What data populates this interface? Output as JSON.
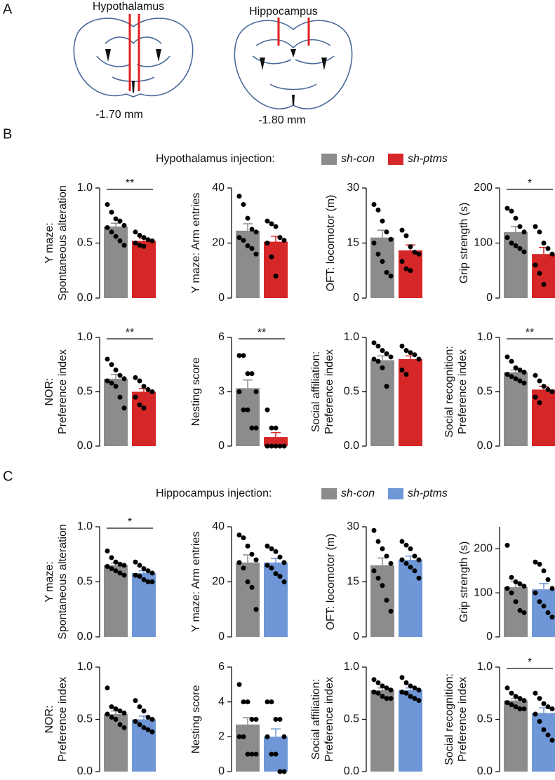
{
  "panel_labels": [
    "A",
    "B",
    "C"
  ],
  "brain_sections": [
    {
      "region": "Hypothalamus",
      "coordinate": "-1.70 mm"
    },
    {
      "region": "Hippocampus",
      "coordinate": "-1.80 mm"
    }
  ],
  "legends": [
    {
      "title": "Hypothalamus injection:",
      "entries": [
        {
          "name": "sh-con",
          "color": "#8c8c8c"
        },
        {
          "name": "sh-ptms",
          "color": "#d62728"
        }
      ]
    },
    {
      "title": "Hippocampus injection:",
      "entries": [
        {
          "name": "sh-con",
          "color": "#8c8c8c"
        },
        {
          "name": "sh-ptms",
          "color": "#6f96d6"
        }
      ]
    }
  ],
  "chart_data": [
    {
      "type": "bar",
      "ylabel": [
        "Y maze:",
        "Spontaneous alteration"
      ],
      "ylim": [
        0,
        1
      ],
      "yticks": [
        {
          "value": 0,
          "label": "0.0"
        },
        0.5,
        {
          "value": 1,
          "label": "1.0"
        }
      ],
      "significance": "**",
      "series": [
        {
          "color": "#8c8c8c",
          "values": [
            0.65
          ],
          "errors": [
            0.03
          ],
          "points": [
            0.85,
            0.78,
            0.72,
            0.7,
            0.66,
            0.64,
            0.6,
            0.56,
            0.52,
            0.48
          ]
        },
        {
          "color": "#d62728",
          "values": [
            0.52
          ],
          "errors": [
            0.02
          ],
          "points": [
            0.6,
            0.57,
            0.55,
            0.53,
            0.52,
            0.5,
            0.48,
            0.47
          ]
        }
      ]
    },
    {
      "type": "bar",
      "ylabel": [
        "Y maze: Arm entries"
      ],
      "ylim": [
        0,
        40
      ],
      "yticks": [
        0,
        20,
        40
      ],
      "series": [
        {
          "color": "#8c8c8c",
          "values": [
            24.5
          ],
          "errors": [
            2.5
          ],
          "points": [
            37,
            34,
            29,
            25,
            24,
            22,
            21,
            19,
            18,
            16
          ]
        },
        {
          "color": "#d62728",
          "values": [
            20.5
          ],
          "errors": [
            2
          ],
          "points": [
            28,
            27,
            26,
            22,
            21,
            20,
            15,
            8
          ]
        }
      ]
    },
    {
      "type": "bar",
      "ylabel": [
        "OFT: locomotor (m)"
      ],
      "ylim": [
        0,
        30
      ],
      "yticks": [
        0,
        15,
        30
      ],
      "series": [
        {
          "color": "#8c8c8c",
          "values": [
            16.5
          ],
          "errors": [
            2
          ],
          "points": [
            25.5,
            24,
            21,
            18,
            16,
            15,
            12,
            10,
            7,
            6
          ]
        },
        {
          "color": "#d62728",
          "values": [
            13
          ],
          "errors": [
            1.5
          ],
          "points": [
            18.5,
            17,
            14,
            12.5,
            12,
            10,
            8,
            7.5
          ]
        }
      ]
    },
    {
      "type": "bar",
      "ylabel": [
        "Grip strength (s)"
      ],
      "ylim": [
        0,
        200
      ],
      "yticks": [
        0,
        100,
        200
      ],
      "significance": "*",
      "series": [
        {
          "color": "#8c8c8c",
          "values": [
            120
          ],
          "errors": [
            10
          ],
          "points": [
            163,
            158,
            145,
            130,
            120,
            110,
            100,
            95,
            90,
            84
          ]
        },
        {
          "color": "#d62728",
          "values": [
            80
          ],
          "errors": [
            12
          ],
          "points": [
            130,
            120,
            100,
            90,
            80,
            60,
            45,
            25
          ]
        }
      ]
    },
    {
      "type": "bar",
      "ylabel": [
        "NOR:",
        "Preference index"
      ],
      "ylim": [
        0,
        1
      ],
      "yticks": [
        {
          "value": 0,
          "label": "0.0"
        },
        0.5,
        {
          "value": 1,
          "label": "1.0"
        }
      ],
      "significance": "**",
      "series": [
        {
          "color": "#8c8c8c",
          "values": [
            0.62
          ],
          "errors": [
            0.04
          ],
          "points": [
            0.8,
            0.75,
            0.7,
            0.65,
            0.62,
            0.6,
            0.58,
            0.55,
            0.45,
            0.35
          ]
        },
        {
          "color": "#d62728",
          "values": [
            0.5
          ],
          "errors": [
            0.03
          ],
          "points": [
            0.63,
            0.6,
            0.55,
            0.52,
            0.5,
            0.45,
            0.38,
            0.35
          ]
        }
      ]
    },
    {
      "type": "bar",
      "ylabel": [
        "Nesting score"
      ],
      "ylim": [
        0,
        6
      ],
      "yticks": [
        0,
        3,
        6
      ],
      "significance": "**",
      "series": [
        {
          "color": "#8c8c8c",
          "values": [
            3.2
          ],
          "errors": [
            0.45
          ],
          "points": [
            5,
            5,
            4,
            4,
            3,
            3,
            2,
            2,
            1,
            1
          ]
        },
        {
          "color": "#d62728",
          "values": [
            0.5
          ],
          "errors": [
            0.25
          ],
          "points": [
            2,
            1,
            1,
            0,
            0,
            0,
            0,
            0
          ]
        }
      ]
    },
    {
      "type": "bar",
      "ylabel": [
        "Social affiliation:",
        "Preference index"
      ],
      "ylim": [
        0,
        1
      ],
      "yticks": [
        {
          "value": 0,
          "label": "0.0"
        },
        0.5,
        {
          "value": 1,
          "label": "1.0"
        }
      ],
      "series": [
        {
          "color": "#8c8c8c",
          "values": [
            0.79
          ],
          "errors": [
            0.04
          ],
          "points": [
            0.95,
            0.92,
            0.88,
            0.85,
            0.82,
            0.8,
            0.78,
            0.72,
            0.55
          ]
        },
        {
          "color": "#d62728",
          "values": [
            0.8
          ],
          "errors": [
            0.03
          ],
          "points": [
            0.92,
            0.88,
            0.86,
            0.84,
            0.8,
            0.7,
            0.66
          ]
        }
      ]
    },
    {
      "type": "bar",
      "ylabel": [
        "Social recognition:",
        "Preference index"
      ],
      "ylim": [
        0,
        1
      ],
      "yticks": [
        {
          "value": 0,
          "label": "0.0"
        },
        0.5,
        {
          "value": 1,
          "label": "1.0"
        }
      ],
      "significance": "**",
      "series": [
        {
          "color": "#8c8c8c",
          "values": [
            0.68
          ],
          "errors": [
            0.02
          ],
          "points": [
            0.82,
            0.78,
            0.72,
            0.7,
            0.68,
            0.66,
            0.64,
            0.62,
            0.6,
            0.58
          ]
        },
        {
          "color": "#d62728",
          "values": [
            0.52
          ],
          "errors": [
            0.03
          ],
          "points": [
            0.65,
            0.6,
            0.55,
            0.52,
            0.5,
            0.45,
            0.4
          ]
        }
      ]
    },
    {
      "type": "bar",
      "ylabel": [
        "Y maze:",
        "Spontaneous alteration"
      ],
      "ylim": [
        0,
        1
      ],
      "yticks": [
        {
          "value": 0,
          "label": "0.0"
        },
        0.5,
        {
          "value": 1,
          "label": "1.0"
        }
      ],
      "significance": "*",
      "series": [
        {
          "color": "#8c8c8c",
          "values": [
            0.65
          ],
          "errors": [
            0.02
          ],
          "points": [
            0.78,
            0.72,
            0.68,
            0.66,
            0.65,
            0.64,
            0.62,
            0.6,
            0.58,
            0.56
          ]
        },
        {
          "color": "#6f96d6",
          "values": [
            0.58
          ],
          "errors": [
            0.02
          ],
          "points": [
            0.68,
            0.65,
            0.62,
            0.6,
            0.58,
            0.56,
            0.55,
            0.52,
            0.5,
            0.5
          ]
        }
      ]
    },
    {
      "type": "bar",
      "ylabel": [
        "Y maze: Arm entries"
      ],
      "ylim": [
        0,
        40
      ],
      "yticks": [
        0,
        20,
        40
      ],
      "series": [
        {
          "color": "#8c8c8c",
          "values": [
            27
          ],
          "errors": [
            2.8
          ],
          "points": [
            37,
            36,
            33,
            30,
            28,
            27,
            25,
            20,
            18,
            10
          ]
        },
        {
          "color": "#6f96d6",
          "values": [
            27
          ],
          "errors": [
            1.5
          ],
          "points": [
            33,
            32,
            31,
            29,
            27,
            26,
            25,
            23,
            22,
            20
          ]
        }
      ]
    },
    {
      "type": "bar",
      "ylabel": [
        "OFT: locomotor (m)"
      ],
      "ylim": [
        0,
        30
      ],
      "yticks": [
        0,
        15,
        30
      ],
      "series": [
        {
          "color": "#8c8c8c",
          "values": [
            19.5
          ],
          "errors": [
            2
          ],
          "points": [
            29,
            26,
            24,
            22,
            20,
            18,
            16,
            14,
            10,
            7
          ]
        },
        {
          "color": "#6f96d6",
          "values": [
            21
          ],
          "errors": [
            1
          ],
          "points": [
            26,
            25,
            24,
            22,
            21,
            21,
            20,
            19,
            18,
            16
          ]
        }
      ]
    },
    {
      "type": "bar",
      "ylabel": [
        "Grip strength (s)"
      ],
      "ylim": [
        0,
        250
      ],
      "yticks": [
        0,
        100,
        200
      ],
      "series": [
        {
          "color": "#8c8c8c",
          "values": [
            113
          ],
          "errors": [
            13
          ],
          "points": [
            208,
            135,
            125,
            120,
            115,
            110,
            100,
            80,
            60,
            55
          ]
        },
        {
          "color": "#6f96d6",
          "values": [
            108
          ],
          "errors": [
            13
          ],
          "points": [
            170,
            165,
            150,
            130,
            110,
            100,
            80,
            70,
            55,
            45
          ]
        }
      ]
    },
    {
      "type": "bar",
      "ylabel": [
        "NOR:",
        "Preference index"
      ],
      "ylim": [
        0,
        1
      ],
      "yticks": [
        {
          "value": 0,
          "label": "0.0"
        },
        0.5,
        {
          "value": 1,
          "label": "1.0"
        }
      ],
      "series": [
        {
          "color": "#8c8c8c",
          "values": [
            0.55
          ],
          "errors": [
            0.03
          ],
          "points": [
            0.8,
            0.62,
            0.6,
            0.58,
            0.56,
            0.55,
            0.52,
            0.5,
            0.45,
            0.42
          ]
        },
        {
          "color": "#6f96d6",
          "values": [
            0.5
          ],
          "errors": [
            0.03
          ],
          "points": [
            0.68,
            0.62,
            0.58,
            0.52,
            0.5,
            0.48,
            0.45,
            0.42,
            0.4,
            0.38
          ]
        }
      ]
    },
    {
      "type": "bar",
      "ylabel": [
        "Nesting score"
      ],
      "ylim": [
        0,
        6
      ],
      "yticks": [
        0,
        2,
        4,
        6
      ],
      "series": [
        {
          "color": "#8c8c8c",
          "values": [
            2.7
          ],
          "errors": [
            0.4
          ],
          "points": [
            5,
            4,
            4,
            3,
            3,
            2,
            2,
            1,
            1,
            1
          ]
        },
        {
          "color": "#6f96d6",
          "values": [
            2
          ],
          "errors": [
            0.45
          ],
          "points": [
            4,
            4,
            3,
            3,
            2,
            2,
            1,
            1,
            0,
            0
          ]
        }
      ]
    },
    {
      "type": "bar",
      "ylabel": [
        "Social affiliation:",
        "Preference index"
      ],
      "ylim": [
        0,
        1
      ],
      "yticks": [
        {
          "value": 0,
          "label": "0.0"
        },
        0.5,
        {
          "value": 1,
          "label": "1.0"
        }
      ],
      "series": [
        {
          "color": "#8c8c8c",
          "values": [
            0.78
          ],
          "errors": [
            0.02
          ],
          "points": [
            0.88,
            0.85,
            0.82,
            0.8,
            0.78,
            0.76,
            0.75,
            0.72,
            0.7,
            0.7
          ]
        },
        {
          "color": "#6f96d6",
          "values": [
            0.78
          ],
          "errors": [
            0.02
          ],
          "points": [
            0.9,
            0.85,
            0.82,
            0.8,
            0.78,
            0.76,
            0.75,
            0.72,
            0.7,
            0.68
          ]
        }
      ]
    },
    {
      "type": "bar",
      "ylabel": [
        "Social recognition:",
        "Preference index"
      ],
      "ylim": [
        0,
        1
      ],
      "yticks": [
        {
          "value": 0,
          "label": "0.0"
        },
        0.5,
        {
          "value": 1,
          "label": "1.0"
        }
      ],
      "significance": "*",
      "series": [
        {
          "color": "#8c8c8c",
          "values": [
            0.68
          ],
          "errors": [
            0.02
          ],
          "points": [
            0.8,
            0.75,
            0.72,
            0.7,
            0.68,
            0.66,
            0.64,
            0.62,
            0.6,
            0.6
          ]
        },
        {
          "color": "#6f96d6",
          "values": [
            0.56
          ],
          "errors": [
            0.05
          ],
          "points": [
            0.75,
            0.7,
            0.65,
            0.62,
            0.6,
            0.55,
            0.48,
            0.4,
            0.35,
            0.3
          ]
        }
      ]
    }
  ]
}
